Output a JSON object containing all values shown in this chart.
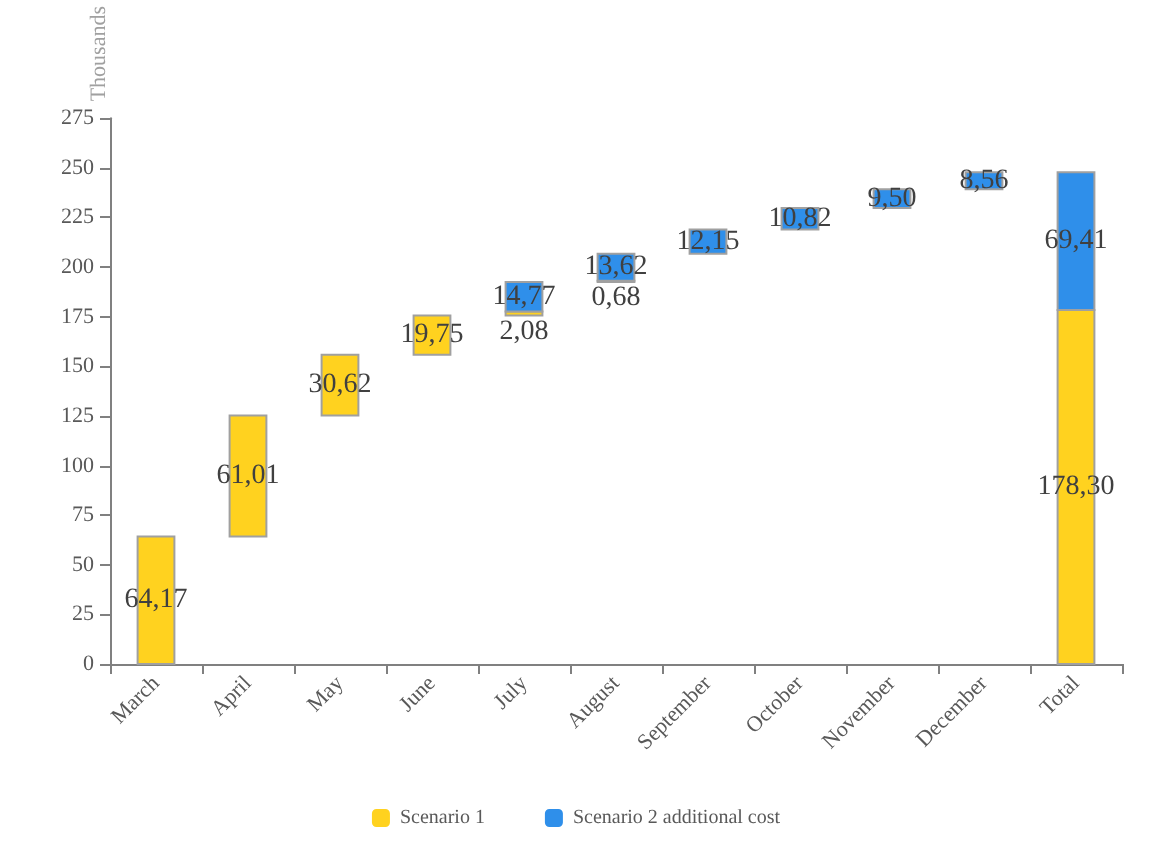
{
  "chart_data": {
    "type": "bar",
    "ylabel": "Thousands",
    "categories": [
      "March",
      "April",
      "May",
      "June",
      "July",
      "August",
      "September",
      "October",
      "November",
      "December",
      "Total"
    ],
    "series": [
      {
        "name": "Scenario 1",
        "color": "#ffd21f",
        "values": [
          64.17,
          61.01,
          30.62,
          19.75,
          2.08,
          0.68,
          null,
          null,
          null,
          null,
          178.3
        ],
        "base": [
          0,
          64.17,
          125.18,
          155.8,
          175.55,
          192.4,
          null,
          null,
          null,
          null,
          0
        ],
        "value_labels": [
          "64,17",
          "61,01",
          "30,62",
          "19,75",
          "2,08",
          "0,68",
          null,
          null,
          null,
          null,
          "178,30"
        ]
      },
      {
        "name": "Scenario 2 additional cost",
        "color": "#2f8fea",
        "values": [
          null,
          null,
          null,
          null,
          14.77,
          13.62,
          12.15,
          10.82,
          9.5,
          8.56,
          69.41
        ],
        "base": [
          null,
          null,
          null,
          null,
          177.63,
          193.08,
          206.7,
          218.85,
          229.67,
          239.17,
          178.3
        ],
        "value_labels": [
          null,
          null,
          null,
          null,
          "14,77",
          "13,62",
          "12,15",
          "10,82",
          "9,50",
          "8,56",
          "69,41"
        ]
      }
    ],
    "ylim": [
      0,
      275
    ],
    "yticks": [
      0,
      25,
      50,
      75,
      100,
      125,
      150,
      175,
      200,
      225,
      250,
      275
    ],
    "legend": "bottom"
  }
}
